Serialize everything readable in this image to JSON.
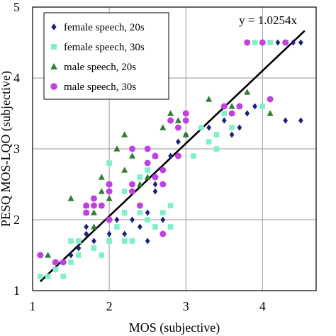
{
  "chart_data": {
    "type": "scatter",
    "xlabel": "MOS (subjective)",
    "ylabel": "PESQ MOS-LQO (subjective)",
    "xlim": [
      1,
      4.7
    ],
    "ylim": [
      1,
      5
    ],
    "x_ticks": [
      1,
      2,
      3,
      4
    ],
    "y_ticks": [
      1,
      2,
      3,
      4,
      5
    ],
    "grid": true,
    "legend_position": "top-left",
    "fit_line": {
      "label": "y = 1.0254x",
      "slope": 1.0254,
      "x_range": [
        1.1,
        4.55
      ],
      "color": "#000000"
    },
    "series": [
      {
        "name": "female speech, 20s",
        "marker": "diamond",
        "color": "#1a237e",
        "points": [
          [
            1.7,
            1.8
          ],
          [
            1.7,
            1.9
          ],
          [
            1.8,
            1.7
          ],
          [
            2.0,
            1.8
          ],
          [
            2.1,
            2.0
          ],
          [
            2.2,
            1.8
          ],
          [
            2.2,
            2.1
          ],
          [
            2.3,
            2.0
          ],
          [
            2.4,
            1.9
          ],
          [
            2.4,
            2.2
          ],
          [
            2.5,
            1.7
          ],
          [
            2.5,
            2.1
          ],
          [
            2.6,
            2.4
          ],
          [
            2.7,
            2.0
          ],
          [
            2.6,
            2.5
          ],
          [
            2.8,
            2.9
          ],
          [
            2.9,
            3.1
          ],
          [
            3.0,
            3.2
          ],
          [
            3.0,
            3.5
          ],
          [
            3.3,
            3.3
          ],
          [
            3.5,
            3.4
          ],
          [
            3.6,
            3.2
          ],
          [
            3.7,
            3.3
          ],
          [
            3.8,
            3.5
          ],
          [
            3.9,
            3.6
          ],
          [
            4.0,
            4.5
          ],
          [
            4.2,
            4.5
          ],
          [
            4.4,
            4.5
          ],
          [
            4.5,
            4.5
          ],
          [
            4.3,
            3.4
          ],
          [
            4.5,
            3.4
          ],
          [
            1.3,
            1.3
          ],
          [
            1.5,
            1.5
          ],
          [
            1.6,
            1.6
          ],
          [
            2.3,
            2.4
          ]
        ]
      },
      {
        "name": "female speech, 30s",
        "marker": "square",
        "color": "#80f0cc",
        "points": [
          [
            1.1,
            1.2
          ],
          [
            1.2,
            1.2
          ],
          [
            1.3,
            1.3
          ],
          [
            1.4,
            1.2
          ],
          [
            1.5,
            1.7
          ],
          [
            1.5,
            1.4
          ],
          [
            1.6,
            1.5
          ],
          [
            1.6,
            1.7
          ],
          [
            1.8,
            1.6
          ],
          [
            1.9,
            1.5
          ],
          [
            2.0,
            1.7
          ],
          [
            2.1,
            1.9
          ],
          [
            2.2,
            2.1
          ],
          [
            2.2,
            1.7
          ],
          [
            2.3,
            1.7
          ],
          [
            2.4,
            2.1
          ],
          [
            2.5,
            2.0
          ],
          [
            2.6,
            1.9
          ],
          [
            2.7,
            2.1
          ],
          [
            2.8,
            1.9
          ],
          [
            2.8,
            2.2
          ],
          [
            1.9,
            2.2
          ],
          [
            2.0,
            2.5
          ],
          [
            2.0,
            2.8
          ],
          [
            2.5,
            2.7
          ],
          [
            3.1,
            2.9
          ],
          [
            3.2,
            3.3
          ],
          [
            3.3,
            3.1
          ],
          [
            3.4,
            3.2
          ],
          [
            3.5,
            3.5
          ],
          [
            3.6,
            3.3
          ],
          [
            3.7,
            3.6
          ],
          [
            4.0,
            3.6
          ],
          [
            3.9,
            4.5
          ],
          [
            4.1,
            4.5
          ],
          [
            4.3,
            4.5
          ],
          [
            3.4,
            3.0
          ],
          [
            2.4,
            2.6
          ],
          [
            2.2,
            2.4
          ]
        ]
      },
      {
        "name": "male speech, 20s",
        "marker": "triangle",
        "color": "#2e7d32",
        "points": [
          [
            1.2,
            1.5
          ],
          [
            1.3,
            1.4
          ],
          [
            1.5,
            2.3
          ],
          [
            1.7,
            2.1
          ],
          [
            1.8,
            1.9
          ],
          [
            1.8,
            2.1
          ],
          [
            1.9,
            2.6
          ],
          [
            1.9,
            2.4
          ],
          [
            2.0,
            2.3
          ],
          [
            2.1,
            3.0
          ],
          [
            2.2,
            2.7
          ],
          [
            2.3,
            2.9
          ],
          [
            2.4,
            2.5
          ],
          [
            2.5,
            2.6
          ],
          [
            2.6,
            2.9
          ],
          [
            2.7,
            3.3
          ],
          [
            2.8,
            3.5
          ],
          [
            2.9,
            3.4
          ],
          [
            3.0,
            3.2
          ],
          [
            3.3,
            3.7
          ],
          [
            3.6,
            3.6
          ],
          [
            3.8,
            3.8
          ],
          [
            4.1,
            3.5
          ],
          [
            2.2,
            3.2
          ],
          [
            1.7,
            2.2
          ]
        ]
      },
      {
        "name": "male speech, 30s",
        "marker": "circle",
        "color": "#c040e0",
        "points": [
          [
            1.1,
            1.5
          ],
          [
            1.3,
            1.4
          ],
          [
            1.4,
            1.4
          ],
          [
            1.7,
            2.1
          ],
          [
            1.7,
            2.2
          ],
          [
            1.8,
            2.2
          ],
          [
            1.8,
            2.3
          ],
          [
            1.9,
            2.2
          ],
          [
            2.0,
            2.4
          ],
          [
            2.0,
            2.5
          ],
          [
            2.3,
            2.4
          ],
          [
            2.3,
            2.5
          ],
          [
            2.3,
            3.0
          ],
          [
            2.5,
            2.8
          ],
          [
            2.5,
            3.0
          ],
          [
            2.6,
            2.6
          ],
          [
            2.6,
            2.9
          ],
          [
            2.7,
            2.5
          ],
          [
            2.7,
            2.7
          ],
          [
            2.8,
            3.4
          ],
          [
            2.9,
            3.3
          ],
          [
            3.0,
            3.5
          ],
          [
            3.0,
            3.4
          ],
          [
            2.9,
            2.9
          ],
          [
            3.5,
            3.6
          ],
          [
            3.6,
            3.5
          ],
          [
            3.7,
            3.6
          ],
          [
            3.8,
            4.5
          ],
          [
            4.0,
            4.5
          ],
          [
            4.1,
            3.7
          ],
          [
            4.3,
            4.5
          ],
          [
            2.7,
            1.8
          ],
          [
            2.4,
            2.2
          ],
          [
            2.0,
            2.0
          ]
        ]
      }
    ]
  }
}
